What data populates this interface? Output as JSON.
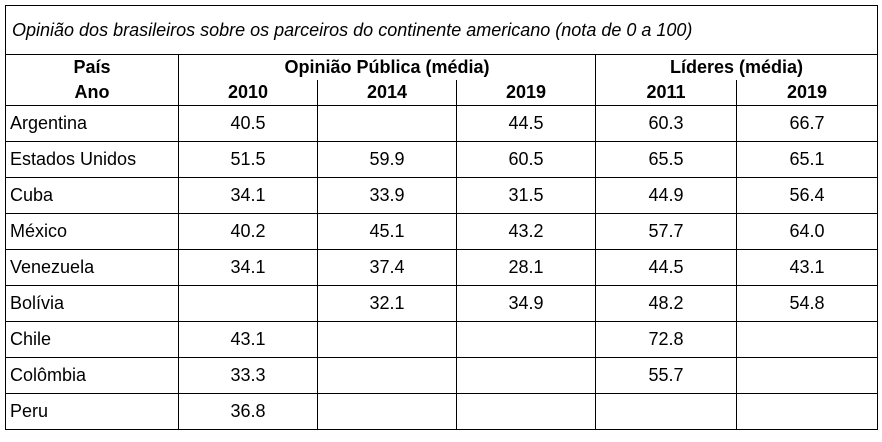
{
  "title": "Opinião dos brasileiros sobre os parceiros do continente americano (nota de 0 a 100)",
  "header": {
    "pais_label": "País",
    "ano_label": "Ano",
    "opiniao_label": "Opinião Pública (média)",
    "lideres_label": "Líderes (média)",
    "years": [
      "2010",
      "2014",
      "2019",
      "2011",
      "2019"
    ]
  },
  "rows": [
    {
      "country": "Argentina",
      "values": [
        "40.5",
        "",
        "44.5",
        "60.3",
        "66.7"
      ]
    },
    {
      "country": "Estados Unidos",
      "values": [
        "51.5",
        "59.9",
        "60.5",
        "65.5",
        "65.1"
      ]
    },
    {
      "country": "Cuba",
      "values": [
        "34.1",
        "33.9",
        "31.5",
        "44.9",
        "56.4"
      ]
    },
    {
      "country": "México",
      "values": [
        "40.2",
        "45.1",
        "43.2",
        "57.7",
        "64.0"
      ]
    },
    {
      "country": "Venezuela",
      "values": [
        "34.1",
        "37.4",
        "28.1",
        "44.5",
        "43.1"
      ]
    },
    {
      "country": "Bolívia",
      "values": [
        "",
        "32.1",
        "34.9",
        "48.2",
        "54.8"
      ]
    },
    {
      "country": "Chile",
      "values": [
        "43.1",
        "",
        "",
        "72.8",
        ""
      ]
    },
    {
      "country": "Colômbia",
      "values": [
        "33.3",
        "",
        "",
        "55.7",
        ""
      ]
    },
    {
      "country": "Peru",
      "values": [
        "36.8",
        "",
        "",
        "",
        ""
      ]
    }
  ]
}
